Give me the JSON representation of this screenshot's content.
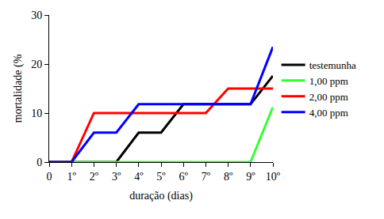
{
  "chart_data": {
    "type": "line",
    "x_label": "duração (dias)",
    "y_label": "mortalidade (%",
    "categories": [
      "0",
      "1º",
      "2º",
      "3º",
      "4º",
      "5º",
      "6º",
      "7º",
      "8º",
      "9º",
      "10º"
    ],
    "series": [
      {
        "name": "testemunha",
        "color": "#000000",
        "values": [
          0,
          0,
          0,
          0,
          6,
          6,
          11.8,
          11.8,
          11.8,
          11.8,
          17.6
        ]
      },
      {
        "name": "1,00 ppm",
        "color": "#33ff33",
        "values": [
          0,
          0,
          0,
          0,
          0,
          0,
          0,
          0,
          0,
          0,
          11.2
        ]
      },
      {
        "name": "2,00 ppm",
        "color": "#ff0000",
        "values": [
          0,
          0,
          10,
          10,
          10,
          10,
          10,
          10,
          15,
          15,
          15
        ]
      },
      {
        "name": "4,00 ppm",
        "color": "#0000ff",
        "values": [
          0,
          0,
          6,
          6,
          11.8,
          11.8,
          11.8,
          11.8,
          11.8,
          11.8,
          23.5
        ]
      }
    ],
    "ylim": [
      0,
      30
    ],
    "yticks": [
      0,
      10,
      20,
      30
    ],
    "grid": false,
    "legend": "right"
  }
}
